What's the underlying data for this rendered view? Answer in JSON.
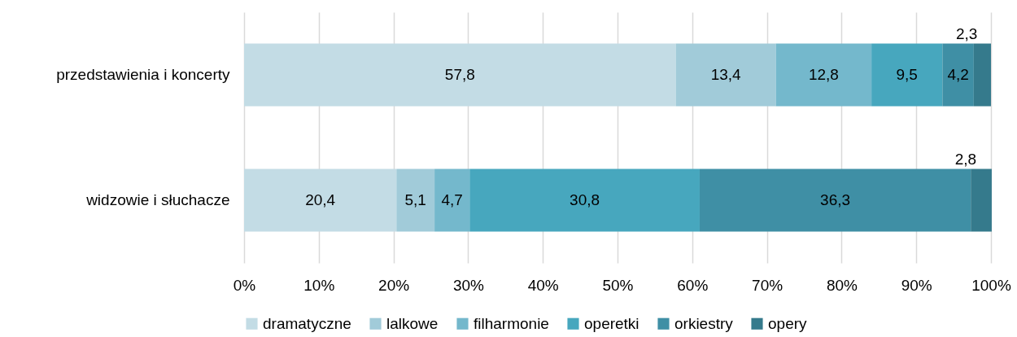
{
  "chart_data": {
    "type": "bar",
    "orientation": "horizontal",
    "stacked": true,
    "categories": [
      "przedstawienia i koncerty",
      "widzowie i słuchacze"
    ],
    "series": [
      {
        "name": "dramatyczne",
        "color": "#c3dce5",
        "values": [
          57.8,
          20.4
        ],
        "value_labels": [
          "57,8",
          "20,4"
        ]
      },
      {
        "name": "lalkowe",
        "color": "#a1cbd9",
        "values": [
          13.4,
          5.1
        ],
        "value_labels": [
          "13,4",
          "5,1"
        ]
      },
      {
        "name": "filharmonie",
        "color": "#74b8cc",
        "values": [
          12.8,
          4.7
        ],
        "value_labels": [
          "12,8",
          "4,7"
        ]
      },
      {
        "name": "operetki",
        "color": "#47a7be",
        "values": [
          9.5,
          30.8
        ],
        "value_labels": [
          "9,5",
          "30,8"
        ]
      },
      {
        "name": "orkiestry",
        "color": "#3f8fa5",
        "values": [
          4.2,
          36.3
        ],
        "value_labels": [
          "4,2",
          "36,3"
        ]
      },
      {
        "name": "opery",
        "color": "#357a8c",
        "values": [
          2.3,
          2.8
        ],
        "value_labels": [
          "2,3",
          "2,8"
        ]
      }
    ],
    "xlim": [
      0,
      100
    ],
    "xticks": [
      {
        "value": 0,
        "label": "0%"
      },
      {
        "value": 10,
        "label": "10%"
      },
      {
        "value": 20,
        "label": "20%"
      },
      {
        "value": 30,
        "label": "30%"
      },
      {
        "value": 40,
        "label": "40%"
      },
      {
        "value": 50,
        "label": "50%"
      },
      {
        "value": 60,
        "label": "60%"
      },
      {
        "value": 70,
        "label": "70%"
      },
      {
        "value": 80,
        "label": "80%"
      },
      {
        "value": 90,
        "label": "90%"
      },
      {
        "value": 100,
        "label": "100%"
      }
    ],
    "grid": "x",
    "legend": "bottom"
  }
}
